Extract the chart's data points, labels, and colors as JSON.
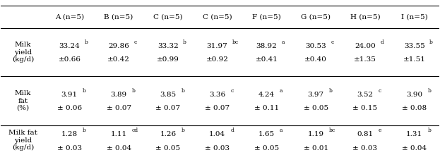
{
  "col_headers": [
    "A (n=5)",
    "B (n=5)",
    "C (n=5)",
    "C (n=5)",
    "F (n=5)",
    "G (n=5)",
    "H (n=5)",
    "I (n=5)"
  ],
  "row_headers": [
    "Milk\nyield\n(kg/d)",
    "Milk\nfat\n(%)",
    "Milk fat\nyield\n(kg/d)"
  ],
  "cell_data": [
    [
      {
        "main": "33.24",
        "sup": "b",
        "sub": "±0.66"
      },
      {
        "main": "29.86",
        "sup": "c",
        "sub": "±0.42"
      },
      {
        "main": "33.32",
        "sup": "b",
        "sub": "±0.99"
      },
      {
        "main": "31.97",
        "sup": "bc",
        "sub": "±0.92"
      },
      {
        "main": "38.92",
        "sup": "a",
        "sub": "±0.41"
      },
      {
        "main": "30.53",
        "sup": "c",
        "sub": "±0.40"
      },
      {
        "main": "24.00",
        "sup": "d",
        "sub": "±1.35"
      },
      {
        "main": "33.55",
        "sup": "b",
        "sub": "±1.51"
      }
    ],
    [
      {
        "main": "3.91",
        "sup": "b",
        "sub": "± 0.06"
      },
      {
        "main": "3.89",
        "sup": "b",
        "sub": "± 0.07"
      },
      {
        "main": "3.85",
        "sup": "b",
        "sub": "± 0.07"
      },
      {
        "main": "3.36",
        "sup": "c",
        "sub": "± 0.07"
      },
      {
        "main": "4.24",
        "sup": "a",
        "sub": "± 0.11"
      },
      {
        "main": "3.97",
        "sup": "b",
        "sub": "± 0.05"
      },
      {
        "main": "3.52",
        "sup": "c",
        "sub": "± 0.15"
      },
      {
        "main": "3.90",
        "sup": "b",
        "sub": "± 0.08"
      }
    ],
    [
      {
        "main": "1.28",
        "sup": "b",
        "sub": "± 0.03"
      },
      {
        "main": "1.11",
        "sup": "cd",
        "sub": "± 0.04"
      },
      {
        "main": "1.26",
        "sup": "b",
        "sub": "± 0.05"
      },
      {
        "main": "1.04",
        "sup": "d",
        "sub": "± 0.03"
      },
      {
        "main": "1.65",
        "sup": "a",
        "sub": "± 0.05"
      },
      {
        "main": "1.19",
        "sup": "bc",
        "sub": "± 0.01"
      },
      {
        "main": "0.81",
        "sup": "e",
        "sub": "± 0.03"
      },
      {
        "main": "1.31",
        "sup": "b",
        "sub": "± 0.04"
      }
    ]
  ],
  "bg_color": "#ffffff",
  "text_color": "#000000",
  "header_line_color": "#000000",
  "font_size_header": 7.5,
  "font_size_cell": 7.5,
  "font_size_row_header": 7.5
}
